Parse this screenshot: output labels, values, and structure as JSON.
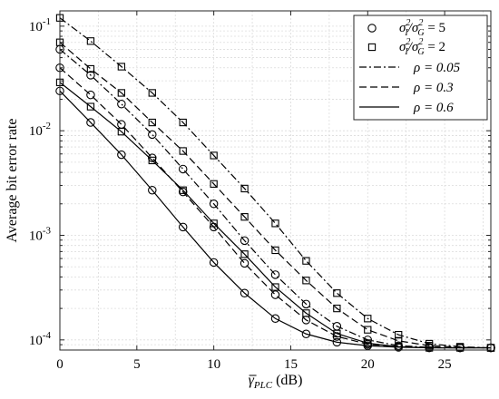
{
  "chart_data": {
    "type": "line",
    "title": "",
    "xlabel": "γ_PLC (dB)",
    "xlabel_parts": {
      "symbol": "γ",
      "subscript": "PLC",
      "unit": "(dB)"
    },
    "ylabel": "Average bit error rate",
    "xlim": [
      0,
      28
    ],
    "ylim": [
      8e-05,
      0.14
    ],
    "y_scale": "log",
    "grid": true,
    "legend_position": "top-right",
    "x_ticks": [
      0,
      5,
      10,
      15,
      20,
      25
    ],
    "y_ticks": [
      {
        "value": 0.1,
        "base": "10",
        "exp": "-1"
      },
      {
        "value": 0.01,
        "base": "10",
        "exp": "-2"
      },
      {
        "value": 0.001,
        "base": "10",
        "exp": "-3"
      },
      {
        "value": 0.0001,
        "base": "10",
        "exp": "-4"
      }
    ],
    "legend": [
      {
        "kind": "marker",
        "marker": "circle",
        "label": "σ_I²/σ_G² = 5",
        "var1": "σ",
        "sub1": "I",
        "var2": "σ",
        "sub2": "G",
        "sup": "2",
        "rhs": "= 5"
      },
      {
        "kind": "marker",
        "marker": "square",
        "label": "σ_I²/σ_G² = 2",
        "var1": "σ",
        "sub1": "I",
        "var2": "σ",
        "sub2": "G",
        "sup": "2",
        "rhs": "= 2"
      },
      {
        "kind": "line",
        "dash": "dashdot",
        "label": "ρ = 0.05"
      },
      {
        "kind": "line",
        "dash": "dashed",
        "label": "ρ = 0.3"
      },
      {
        "kind": "line",
        "dash": "solid",
        "label": "ρ = 0.6"
      }
    ],
    "series": [
      {
        "marker": "square",
        "dash": "dashdot",
        "x": [
          0,
          2,
          4,
          6,
          8,
          10,
          12,
          14,
          16,
          18,
          20,
          22,
          24,
          26,
          28
        ],
        "y": [
          0.12,
          0.072,
          0.041,
          0.023,
          0.012,
          0.0058,
          0.0028,
          0.0013,
          0.00057,
          0.00028,
          0.00016,
          0.000112,
          9.2e-05,
          8.6e-05,
          8.4e-05
        ]
      },
      {
        "marker": "square",
        "dash": "dashed",
        "x": [
          0,
          2,
          4,
          6,
          8,
          10,
          12,
          14,
          16,
          18,
          20,
          22,
          24,
          26,
          28
        ],
        "y": [
          0.07,
          0.039,
          0.023,
          0.012,
          0.0064,
          0.0031,
          0.0015,
          0.00072,
          0.00037,
          0.0002,
          0.000125,
          9.8e-05,
          8.8e-05,
          8.5e-05,
          8.4e-05
        ]
      },
      {
        "marker": "square",
        "dash": "solid",
        "x": [
          0,
          2,
          4,
          6,
          8,
          10,
          12,
          14,
          16,
          18,
          20,
          22,
          24,
          26,
          28
        ],
        "y": [
          0.029,
          0.017,
          0.0098,
          0.0052,
          0.0027,
          0.0013,
          0.00066,
          0.00032,
          0.00018,
          0.000115,
          9.3e-05,
          8.6e-05,
          8.4e-05,
          8.4e-05,
          8.4e-05
        ]
      },
      {
        "marker": "circle",
        "dash": "dashdot",
        "x": [
          0,
          2,
          4,
          6,
          8,
          10,
          12,
          14,
          16,
          18,
          20,
          22,
          24,
          26,
          28
        ],
        "y": [
          0.06,
          0.034,
          0.018,
          0.0092,
          0.0043,
          0.002,
          0.00089,
          0.00042,
          0.00022,
          0.000135,
          0.0001,
          8.8e-05,
          8.5e-05,
          8.4e-05,
          8.4e-05
        ]
      },
      {
        "marker": "circle",
        "dash": "dashed",
        "x": [
          0,
          2,
          4,
          6,
          8,
          10,
          12,
          14,
          16,
          18,
          20,
          22,
          24,
          26,
          28
        ],
        "y": [
          0.04,
          0.022,
          0.0115,
          0.0055,
          0.0026,
          0.0012,
          0.00054,
          0.00027,
          0.000155,
          0.000108,
          9.1e-05,
          8.6e-05,
          8.4e-05,
          8.4e-05,
          8.4e-05
        ]
      },
      {
        "marker": "circle",
        "dash": "solid",
        "x": [
          0,
          2,
          4,
          6,
          8,
          10,
          12,
          14,
          16,
          18,
          20,
          22,
          24,
          26,
          28
        ],
        "y": [
          0.024,
          0.012,
          0.0059,
          0.0027,
          0.0012,
          0.00055,
          0.00028,
          0.00016,
          0.000114,
          9.5e-05,
          8.8e-05,
          8.5e-05,
          8.4e-05,
          8.4e-05,
          8.4e-05
        ]
      }
    ]
  }
}
